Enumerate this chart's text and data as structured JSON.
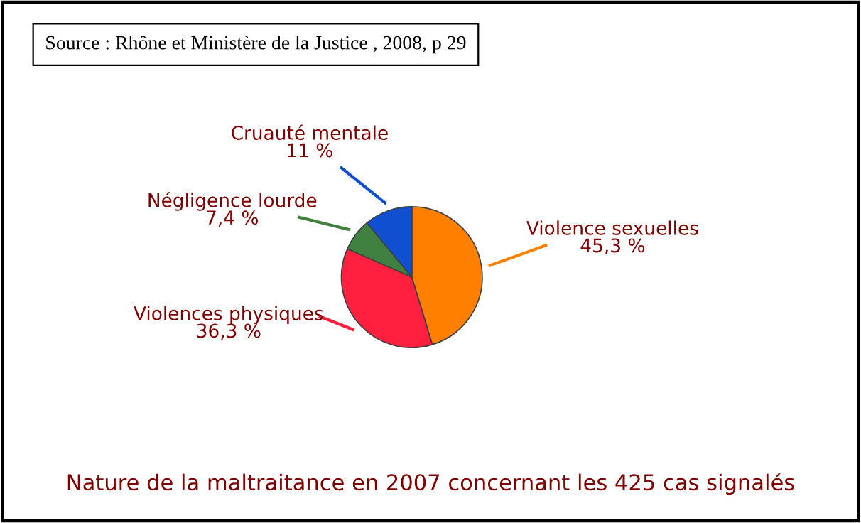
{
  "chart_data": {
    "type": "pie",
    "title": "Nature de la maltraitance en 2007 concernant les 425 cas signalés",
    "annotations": [
      "Source : Rhône et Ministère de la Justice , 2008, p 29"
    ],
    "categories": [
      "Violence sexuelles",
      "Violences physiques",
      "Négligence lourde",
      "Cruauté mentale"
    ],
    "values": [
      45.3,
      36.3,
      7.4,
      11
    ],
    "value_labels": [
      "45,3 %",
      "36,3 %",
      "7,4 %",
      "11 %"
    ],
    "colors": [
      "#ff8000",
      "#ff2040",
      "#408040",
      "#1050d0"
    ]
  }
}
